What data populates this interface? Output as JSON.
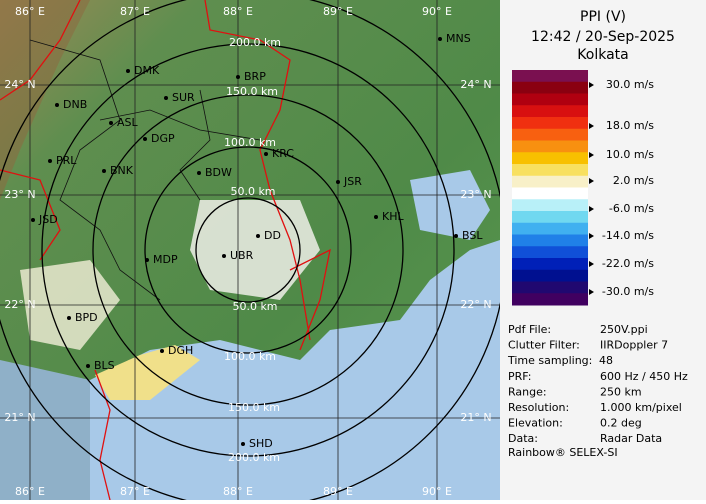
{
  "header": {
    "title": "PPI (V)",
    "datetime": "12:42 / 20-Sep-2025",
    "location": "Kolkata"
  },
  "scale": {
    "labels": [
      "30.0 m/s",
      "18.0 m/s",
      "10.0 m/s",
      "2.0 m/s",
      "-6.0 m/s",
      "-14.0 m/s",
      "-22.0 m/s",
      "-30.0 m/s"
    ]
  },
  "info": [
    {
      "key": "Pdf File:",
      "value": "250V.ppi"
    },
    {
      "key": "Clutter Filter:",
      "value": "IIRDoppler 7"
    },
    {
      "key": "Time sampling:",
      "value": "48"
    },
    {
      "key": "PRF:",
      "value": "600 Hz / 450 Hz"
    },
    {
      "key": "Range:",
      "value": "250 km"
    },
    {
      "key": "Resolution:",
      "value": "1.000 km/pixel"
    },
    {
      "key": "Elevation:",
      "value": "0.2 deg"
    },
    {
      "key": "Data:",
      "value": "Radar Data"
    }
  ],
  "footer": "Rainbow® SELEX-SI",
  "map": {
    "longitudes": [
      "86° E",
      "87° E",
      "88° E",
      "89° E",
      "90° E"
    ],
    "latitudes": [
      "24° N",
      "23° N",
      "22° N",
      "21° N"
    ],
    "rings": [
      "50.0 km",
      "100.0 km",
      "150.0 km",
      "200.0 km"
    ],
    "cities": [
      "MNS",
      "DMK",
      "BRP",
      "DNB",
      "SUR",
      "ASL",
      "DGP",
      "KRC",
      "PRL",
      "BNK",
      "BDW",
      "JSR",
      "KHL",
      "JSD",
      "DD",
      "BSL",
      "MDP",
      "UBR",
      "BPD",
      "DGH",
      "BLS",
      "SHD"
    ]
  }
}
